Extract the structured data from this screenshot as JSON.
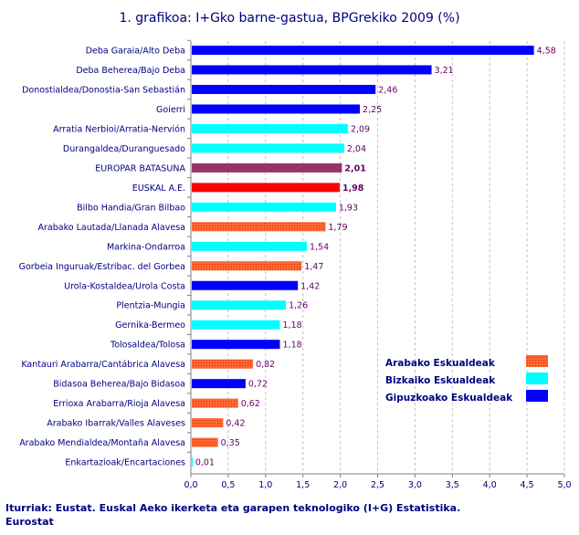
{
  "chart_data": {
    "type": "bar",
    "orientation": "horizontal",
    "title": "1. grafikoa: I+Gko barne-gastua, BPGrekiko  2009 (%)",
    "xlim": [
      0,
      5
    ],
    "ticks": [
      "0,0",
      "0,5",
      "1,0",
      "1,5",
      "2,0",
      "2,5",
      "3,0",
      "3,5",
      "4,0",
      "4,5",
      "5,0"
    ],
    "grid": "vertical dashed",
    "categories": [
      "Deba Garaia/Alto Deba",
      "Deba Beherea/Bajo Deba",
      "Donostialdea/Donostia-San Sebastián",
      "Goierri",
      "Arratia Nerbioi/Arratia-Nervión",
      "Durangaldea/Duranguesado",
      "EUROPAR BATASUNA",
      "EUSKAL A.E.",
      "Bilbo Handia/Gran Bilbao",
      "Arabako Lautada/Llanada Alavesa",
      "Markina-Ondarroa",
      "Gorbeia Inguruak/Estribac. del Gorbea",
      "Urola-Kostaldea/Urola Costa",
      "Plentzia-Mungia",
      "Gernika-Bermeo",
      "Tolosaldea/Tolosa",
      "Kantauri Arabarra/Cantábrica Alavesa",
      "Bidasoa Beherea/Bajo Bidasoa",
      "Errioxa Arabarra/Rioja Alavesa",
      "Arabako Ibarrak/Valles Alaveses",
      "Arabako Mendialdea/Montaña Alavesa",
      "Enkartazioak/Encartaciones"
    ],
    "values": [
      4.58,
      3.21,
      2.46,
      2.25,
      2.09,
      2.04,
      2.01,
      1.98,
      1.93,
      1.79,
      1.54,
      1.47,
      1.42,
      1.26,
      1.18,
      1.18,
      0.82,
      0.72,
      0.62,
      0.42,
      0.35,
      0.01
    ],
    "value_labels": [
      "4,58",
      "3,21",
      "2,46",
      "2,25",
      "2,09",
      "2,04",
      "2,01",
      "1,98",
      "1,93",
      "1,79",
      "1,54",
      "1,47",
      "1,42",
      "1,26",
      "1,18",
      "1,18",
      "0,82",
      "0,72",
      "0,62",
      "0,42",
      "0,35",
      "0,01"
    ],
    "groups": [
      "gip",
      "gip",
      "gip",
      "gip",
      "biz",
      "biz",
      "eu",
      "eae",
      "biz",
      "ara",
      "biz",
      "ara",
      "gip",
      "biz",
      "biz",
      "gip",
      "ara",
      "gip",
      "ara",
      "ara",
      "ara",
      "biz"
    ],
    "colors": {
      "gip": "#0000ff",
      "biz": "#00ffff",
      "ara": "#ff6633",
      "eu": "#993366",
      "eae": "#ff0000"
    },
    "legend": {
      "placement": "right",
      "entries": [
        {
          "name": "Arabako Eskualdeak",
          "group": "ara"
        },
        {
          "name": "Bizkaiko Eskualdeak",
          "group": "biz"
        },
        {
          "name": "Gipuzkoako Eskualdeak",
          "group": "gip"
        }
      ]
    }
  },
  "source": {
    "line1": "Iturriak: Eustat. Euskal Aeko ikerketa eta garapen teknologiko (I+G) Estatistika.",
    "line2": "Eurostat"
  }
}
